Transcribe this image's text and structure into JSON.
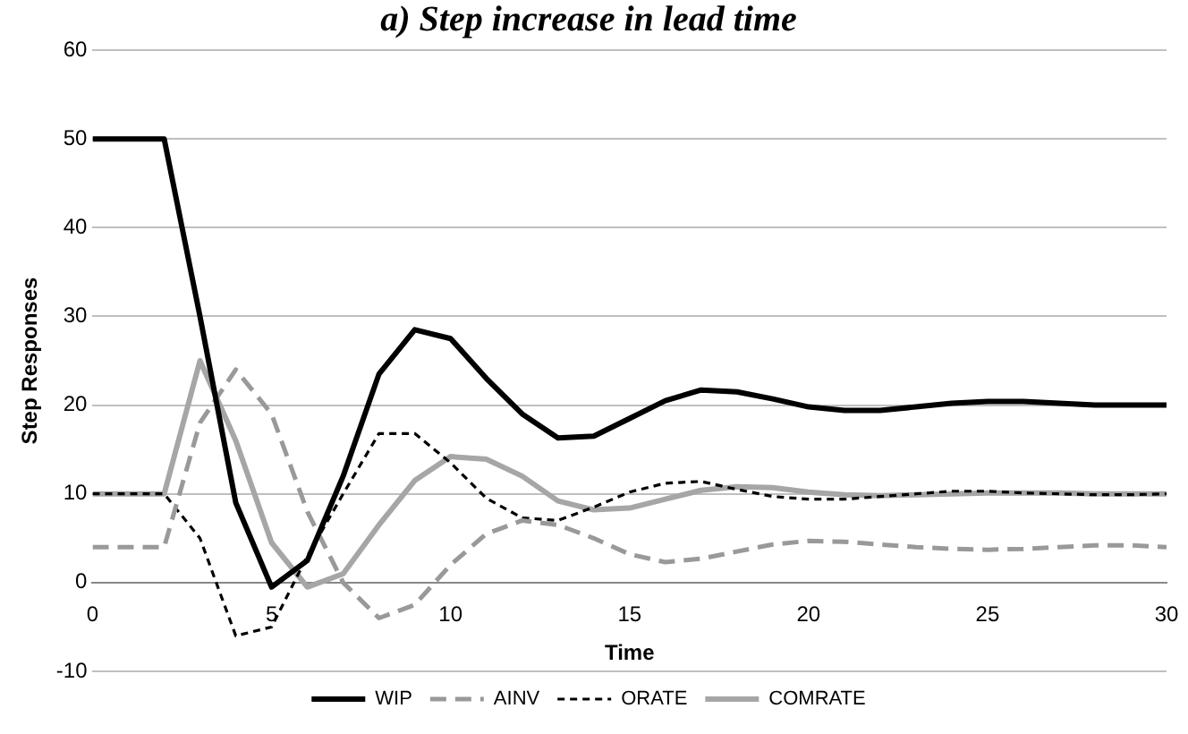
{
  "chart_data": {
    "type": "line",
    "title": "a) Step increase in lead time",
    "xlabel": "Time",
    "ylabel": "Step Responses",
    "x": [
      0,
      1,
      2,
      3,
      4,
      5,
      6,
      7,
      8,
      9,
      10,
      11,
      12,
      13,
      14,
      15,
      16,
      17,
      18,
      19,
      20,
      21,
      22,
      23,
      24,
      25,
      26,
      27,
      28,
      29,
      30
    ],
    "xlim": [
      0,
      30
    ],
    "xticks": [
      0,
      5,
      10,
      15,
      20,
      25,
      30
    ],
    "ylim": [
      -10,
      60
    ],
    "yticks": [
      -10,
      0,
      10,
      20,
      30,
      40,
      50,
      60
    ],
    "grid": "y",
    "legend": "bottom",
    "marker": "none",
    "series": [
      {
        "name": "WIP",
        "color": "#000000",
        "line_style": "solid",
        "values": [
          50,
          50,
          50,
          30,
          9,
          -0.5,
          2.5,
          12,
          23.5,
          28.5,
          27.5,
          23,
          19,
          16.3,
          16.5,
          18.5,
          20.5,
          21.7,
          21.5,
          20.7,
          19.8,
          19.4,
          19.4,
          19.8,
          20.2,
          20.4,
          20.4,
          20.2,
          20,
          20,
          20
        ]
      },
      {
        "name": "AINV",
        "color": "#999999",
        "line_style": "dashed",
        "values": [
          4,
          4,
          4,
          18,
          24,
          19,
          8,
          0,
          -4,
          -2.5,
          2,
          5.5,
          7,
          6.5,
          5,
          3.2,
          2.3,
          2.7,
          3.5,
          4.3,
          4.7,
          4.6,
          4.3,
          4,
          3.8,
          3.7,
          3.8,
          4,
          4.2,
          4.2,
          4
        ]
      },
      {
        "name": "ORATE",
        "color": "#000000",
        "line_style": "dotted",
        "values": [
          10,
          10,
          10,
          5,
          -6,
          -5,
          3,
          10,
          16.8,
          16.8,
          13.5,
          9.5,
          7.3,
          7,
          8.5,
          10.2,
          11.2,
          11.4,
          10.5,
          9.7,
          9.4,
          9.4,
          9.7,
          10,
          10.3,
          10.3,
          10.1,
          10,
          9.9,
          9.9,
          10
        ]
      },
      {
        "name": "COMRATE",
        "color": "#a6a6a6",
        "line_style": "solid",
        "values": [
          10,
          10,
          10,
          25,
          16,
          4.5,
          -0.5,
          1,
          6.5,
          11.5,
          14.2,
          13.9,
          12,
          9.2,
          8.2,
          8.4,
          9.4,
          10.4,
          10.8,
          10.7,
          10.2,
          9.9,
          9.8,
          9.9,
          10,
          10.1,
          10.1,
          10.1,
          10,
          10,
          10
        ]
      }
    ]
  }
}
